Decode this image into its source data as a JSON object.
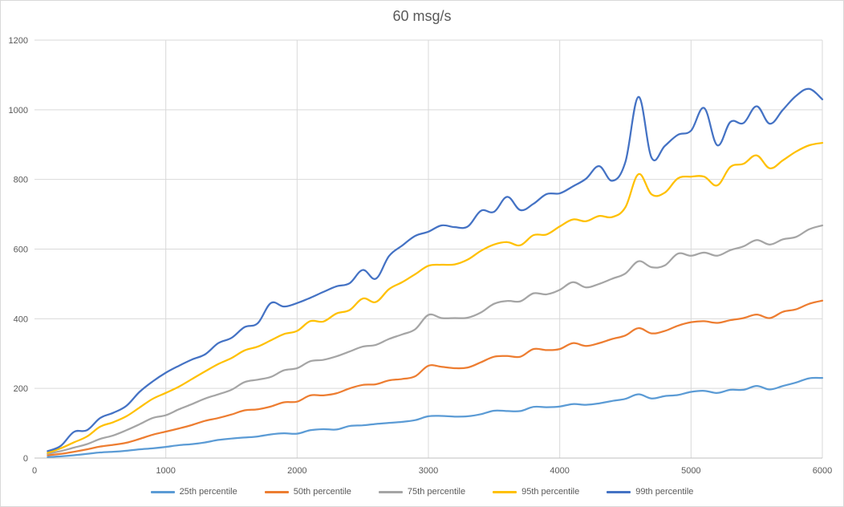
{
  "chart_data": {
    "type": "line",
    "title": "60 msg/s",
    "xlabel": "",
    "ylabel": "",
    "xlim": [
      0,
      6000
    ],
    "ylim": [
      0,
      1200
    ],
    "x_ticks": [
      0,
      1000,
      2000,
      3000,
      4000,
      5000,
      6000
    ],
    "y_ticks": [
      0,
      200,
      400,
      600,
      800,
      1000,
      1200
    ],
    "grid": "vertical and horizontal major gridlines",
    "legend_position": "bottom",
    "x": [
      100,
      200,
      300,
      400,
      500,
      600,
      700,
      800,
      900,
      1000,
      1100,
      1200,
      1300,
      1400,
      1500,
      1600,
      1700,
      1800,
      1900,
      2000,
      2100,
      2200,
      2300,
      2400,
      2500,
      2600,
      2700,
      2800,
      2900,
      3000,
      3100,
      3200,
      3300,
      3400,
      3500,
      3600,
      3700,
      3800,
      3900,
      4000,
      4100,
      4200,
      4300,
      4400,
      4500,
      4600,
      4700,
      4800,
      4900,
      5000,
      5100,
      5200,
      5300,
      5400,
      5500,
      5600,
      5700,
      5800,
      5900,
      6000
    ],
    "series": [
      {
        "name": "25th percentile",
        "color": "#5b9bd5",
        "values": [
          3,
          5,
          8,
          12,
          16,
          18,
          21,
          25,
          28,
          32,
          37,
          40,
          45,
          52,
          56,
          59,
          62,
          68,
          71,
          70,
          80,
          83,
          82,
          92,
          94,
          98,
          101,
          104,
          109,
          120,
          121,
          119,
          120,
          126,
          136,
          135,
          135,
          147,
          146,
          148,
          155,
          153,
          157,
          164,
          170,
          183,
          171,
          178,
          181,
          190,
          193,
          187,
          196,
          196,
          207,
          197,
          207,
          217,
          229,
          230
        ]
      },
      {
        "name": "50th percentile",
        "color": "#ed7d31",
        "values": [
          8,
          12,
          18,
          25,
          33,
          38,
          44,
          55,
          67,
          76,
          85,
          95,
          107,
          115,
          125,
          137,
          140,
          148,
          160,
          162,
          180,
          180,
          186,
          200,
          210,
          212,
          223,
          227,
          235,
          265,
          262,
          258,
          260,
          275,
          291,
          293,
          291,
          313,
          310,
          313,
          330,
          322,
          330,
          342,
          352,
          373,
          358,
          365,
          380,
          390,
          393,
          388,
          396,
          402,
          412,
          402,
          420,
          427,
          443,
          452
        ]
      },
      {
        "name": "75th percentile",
        "color": "#a5a5a5",
        "values": [
          12,
          20,
          30,
          40,
          55,
          65,
          80,
          97,
          115,
          123,
          140,
          155,
          171,
          183,
          196,
          218,
          225,
          233,
          252,
          258,
          278,
          282,
          292,
          306,
          320,
          325,
          342,
          355,
          370,
          411,
          402,
          402,
          403,
          418,
          443,
          451,
          450,
          473,
          470,
          483,
          505,
          490,
          500,
          515,
          530,
          565,
          548,
          553,
          587,
          581,
          590,
          581,
          597,
          608,
          626,
          613,
          628,
          635,
          657,
          668
        ]
      },
      {
        "name": "95th percentile",
        "color": "#ffc000",
        "values": [
          15,
          28,
          45,
          62,
          90,
          103,
          120,
          145,
          170,
          187,
          205,
          227,
          249,
          270,
          287,
          309,
          320,
          338,
          356,
          365,
          393,
          392,
          415,
          425,
          458,
          448,
          485,
          505,
          528,
          552,
          555,
          556,
          570,
          595,
          613,
          620,
          611,
          640,
          642,
          665,
          685,
          680,
          695,
          692,
          720,
          815,
          757,
          762,
          803,
          808,
          808,
          783,
          836,
          845,
          869,
          832,
          855,
          880,
          898,
          905
        ]
      },
      {
        "name": "99th percentile",
        "color": "#4472c4",
        "values": [
          20,
          35,
          75,
          80,
          115,
          130,
          150,
          190,
          220,
          245,
          265,
          283,
          298,
          330,
          345,
          376,
          387,
          445,
          435,
          445,
          460,
          477,
          493,
          502,
          540,
          515,
          580,
          610,
          638,
          650,
          668,
          663,
          665,
          710,
          707,
          750,
          712,
          730,
          758,
          760,
          780,
          802,
          838,
          796,
          850,
          1037,
          862,
          896,
          928,
          940,
          1005,
          898,
          965,
          962,
          1010,
          960,
          1000,
          1040,
          1060,
          1030
        ]
      }
    ]
  }
}
